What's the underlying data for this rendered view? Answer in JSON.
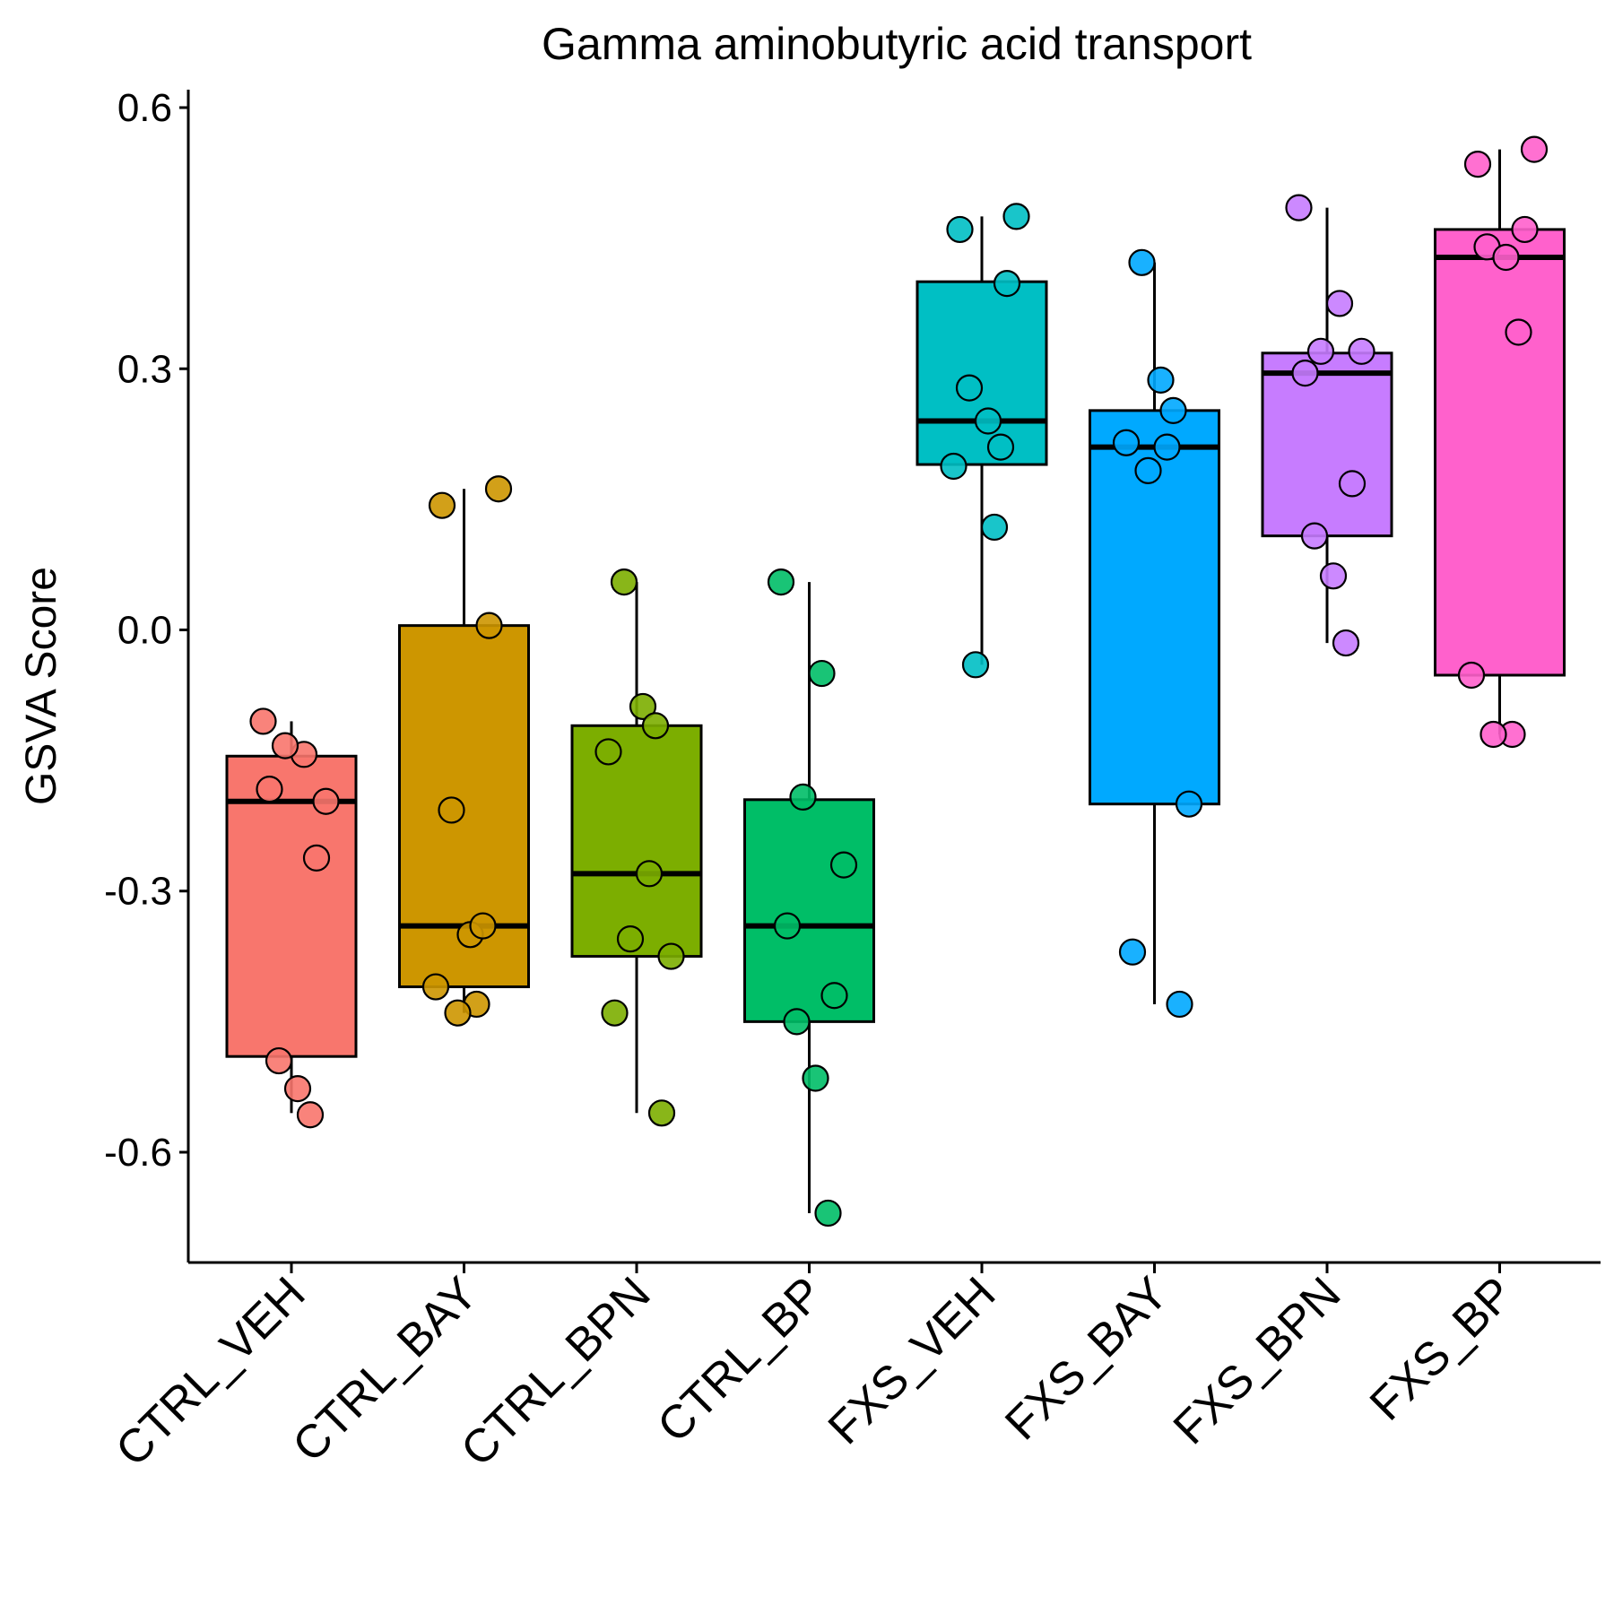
{
  "chart_data": {
    "type": "box",
    "title": "Gamma aminobutyric acid transport",
    "xlabel": "",
    "ylabel": "GSVA Score",
    "ylim": [
      -0.72,
      0.62
    ],
    "yticks": [
      "0.6",
      "0.3",
      "0.0",
      "-0.3",
      "-0.6"
    ],
    "yticks_values": [
      0.6,
      0.3,
      0.0,
      -0.3,
      -0.6
    ],
    "grid": false,
    "legend": "none",
    "categories": [
      "CTRL_VEH",
      "CTRL_BAY",
      "CTRL_BPN",
      "CTRL_BP",
      "FXS_VEH",
      "FXS_BAY",
      "FXS_BPN",
      "FXS_BP"
    ],
    "colors": [
      "#F8766D",
      "#CD9600",
      "#7CAE00",
      "#00BE67",
      "#00BFC4",
      "#00A9FF",
      "#C77CFF",
      "#FF61CC"
    ],
    "boxes": [
      {
        "name": "CTRL_VEH",
        "whisker_low": -0.555,
        "q1": -0.49,
        "median": -0.197,
        "q3": -0.145,
        "whisker_high": -0.105
      },
      {
        "name": "CTRL_BAY",
        "whisker_low": -0.44,
        "q1": -0.41,
        "median": -0.34,
        "q3": 0.005,
        "whisker_high": 0.162
      },
      {
        "name": "CTRL_BPN",
        "whisker_low": -0.555,
        "q1": -0.375,
        "median": -0.28,
        "q3": -0.11,
        "whisker_high": 0.055
      },
      {
        "name": "CTRL_BP",
        "whisker_low": -0.67,
        "q1": -0.45,
        "median": -0.34,
        "q3": -0.195,
        "whisker_high": 0.055
      },
      {
        "name": "FXS_VEH",
        "whisker_low": -0.04,
        "q1": 0.19,
        "median": 0.24,
        "q3": 0.4,
        "whisker_high": 0.475
      },
      {
        "name": "FXS_BAY",
        "whisker_low": -0.43,
        "q1": -0.2,
        "median": 0.21,
        "q3": 0.252,
        "whisker_high": 0.422
      },
      {
        "name": "FXS_BPN",
        "whisker_low": -0.015,
        "q1": 0.108,
        "median": 0.295,
        "q3": 0.318,
        "whisker_high": 0.485
      },
      {
        "name": "FXS_BP",
        "whisker_low": -0.12,
        "q1": -0.052,
        "median": 0.428,
        "q3": 0.46,
        "whisker_high": 0.552
      }
    ],
    "points": [
      [
        -0.105,
        -0.143,
        -0.133,
        -0.197,
        -0.183,
        -0.262,
        -0.495,
        -0.527,
        -0.557
      ],
      [
        0.162,
        0.143,
        0.005,
        -0.207,
        -0.35,
        -0.34,
        -0.41,
        -0.43,
        -0.44
      ],
      [
        0.055,
        -0.088,
        -0.11,
        -0.14,
        -0.28,
        -0.355,
        -0.375,
        -0.44,
        -0.555
      ],
      [
        0.055,
        -0.05,
        -0.192,
        -0.27,
        -0.34,
        -0.42,
        -0.45,
        -0.515,
        -0.67
      ],
      [
        0.475,
        0.46,
        0.398,
        0.278,
        0.24,
        0.21,
        0.188,
        0.118,
        -0.04
      ],
      [
        0.422,
        0.287,
        0.252,
        0.215,
        0.21,
        0.183,
        -0.2,
        -0.37,
        -0.43
      ],
      [
        0.485,
        0.375,
        0.32,
        0.32,
        0.295,
        0.168,
        0.108,
        0.062,
        -0.015
      ],
      [
        0.552,
        0.535,
        0.46,
        0.44,
        0.428,
        0.342,
        -0.052,
        -0.12,
        -0.12
      ]
    ]
  }
}
